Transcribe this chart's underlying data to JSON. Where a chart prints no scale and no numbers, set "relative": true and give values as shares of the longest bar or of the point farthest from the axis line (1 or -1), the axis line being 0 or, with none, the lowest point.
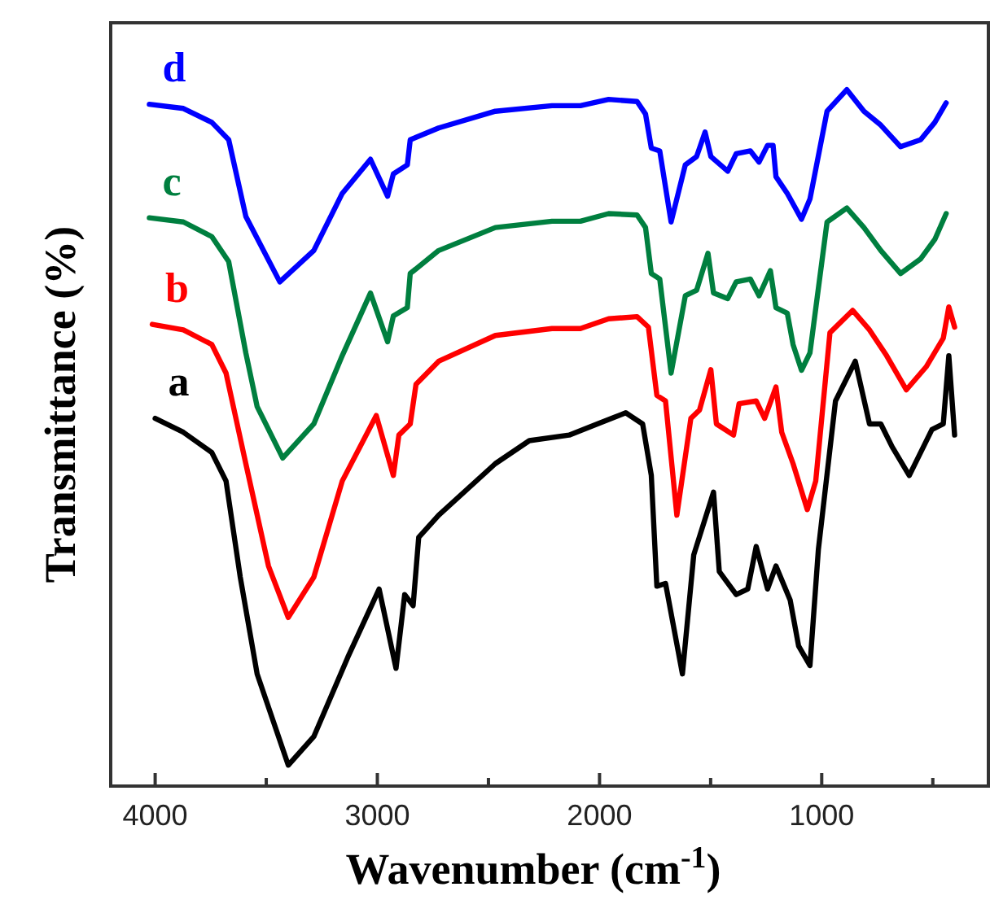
{
  "chart_data": {
    "type": "line",
    "relative": true,
    "xlabel": "Wavenumber (cm$^{-1}$)",
    "ylabel": "Transmittance (%)",
    "xlim": [
      4200,
      250
    ],
    "xticks": [
      4000,
      {
        "value": 3500,
        "label": null
      },
      3000,
      {
        "value": 2500,
        "label": null
      },
      2000,
      {
        "value": 1500,
        "label": null
      },
      1000,
      {
        "value": 500,
        "label": null
      }
    ],
    "grid": false,
    "marker": "none",
    "line_style": "solid",
    "series": [
      {
        "name": "a",
        "color": "#000000",
        "x": [
          4000,
          3873,
          3745,
          3681,
          3617,
          3541,
          3401,
          3286,
          3133,
          2992,
          2916,
          2877,
          2839,
          2814,
          2724,
          2469,
          2316,
          2137,
          2010,
          1882,
          1806,
          1767,
          1742,
          1703,
          1627,
          1576,
          1487,
          1461,
          1385,
          1333,
          1295,
          1244,
          1206,
          1142,
          1104,
          1053,
          1015,
          938,
          849,
          785,
          734,
          683,
          606,
          504,
          453,
          428,
          402
        ],
        "values": [
          0.528,
          0.508,
          0.479,
          0.438,
          0.3,
          0.161,
          0.03,
          0.071,
          0.185,
          0.283,
          0.169,
          0.275,
          0.259,
          0.357,
          0.389,
          0.463,
          0.496,
          0.504,
          0.52,
          0.536,
          0.52,
          0.446,
          0.287,
          0.291,
          0.161,
          0.332,
          0.422,
          0.308,
          0.275,
          0.283,
          0.344,
          0.283,
          0.316,
          0.267,
          0.201,
          0.173,
          0.34,
          0.553,
          0.61,
          0.52,
          0.52,
          0.487,
          0.446,
          0.512,
          0.52,
          0.618,
          0.504
        ]
      },
      {
        "name": "b",
        "color": "#ff0000",
        "x": [
          4013,
          3873,
          3745,
          3681,
          3592,
          3490,
          3401,
          3286,
          3158,
          3005,
          2928,
          2903,
          2852,
          2826,
          2724,
          2469,
          2214,
          2086,
          1959,
          1831,
          1780,
          1742,
          1703,
          1652,
          1589,
          1550,
          1499,
          1474,
          1397,
          1372,
          1295,
          1257,
          1206,
          1180,
          1129,
          1065,
          1027,
          963,
          861,
          785,
          708,
          619,
          530,
          453,
          428,
          402
        ],
        "values": [
          0.663,
          0.655,
          0.634,
          0.593,
          0.463,
          0.316,
          0.242,
          0.3,
          0.438,
          0.532,
          0.446,
          0.504,
          0.52,
          0.577,
          0.61,
          0.647,
          0.657,
          0.657,
          0.671,
          0.674,
          0.659,
          0.561,
          0.553,
          0.389,
          0.528,
          0.54,
          0.598,
          0.52,
          0.504,
          0.549,
          0.553,
          0.528,
          0.573,
          0.508,
          0.463,
          0.397,
          0.438,
          0.651,
          0.683,
          0.655,
          0.618,
          0.569,
          0.602,
          0.643,
          0.688,
          0.659
        ]
      },
      {
        "name": "c",
        "color": "#007f3f",
        "x": [
          4026,
          3873,
          3745,
          3669,
          3592,
          3541,
          3426,
          3286,
          3158,
          3031,
          2954,
          2928,
          2865,
          2852,
          2724,
          2469,
          2214,
          2086,
          1959,
          1831,
          1793,
          1767,
          1729,
          1678,
          1614,
          1563,
          1512,
          1487,
          1423,
          1385,
          1321,
          1282,
          1231,
          1206,
          1155,
          1129,
          1091,
          1053,
          976,
          887,
          810,
          734,
          645,
          555,
          491,
          440
        ],
        "values": [
          0.816,
          0.81,
          0.789,
          0.753,
          0.622,
          0.545,
          0.471,
          0.52,
          0.618,
          0.708,
          0.638,
          0.675,
          0.687,
          0.736,
          0.769,
          0.802,
          0.811,
          0.811,
          0.822,
          0.82,
          0.802,
          0.736,
          0.728,
          0.593,
          0.704,
          0.712,
          0.765,
          0.708,
          0.7,
          0.724,
          0.728,
          0.704,
          0.74,
          0.687,
          0.679,
          0.634,
          0.597,
          0.622,
          0.81,
          0.83,
          0.802,
          0.769,
          0.736,
          0.757,
          0.785,
          0.822
        ]
      },
      {
        "name": "d",
        "color": "#0000ff",
        "x": [
          4026,
          3873,
          3745,
          3669,
          3592,
          3439,
          3286,
          3158,
          3031,
          2954,
          2928,
          2865,
          2852,
          2724,
          2469,
          2214,
          2086,
          1959,
          1831,
          1793,
          1767,
          1729,
          1678,
          1614,
          1563,
          1525,
          1499,
          1423,
          1385,
          1321,
          1282,
          1244,
          1219,
          1206,
          1155,
          1091,
          1053,
          976,
          887,
          810,
          734,
          645,
          555,
          491,
          440
        ],
        "values": [
          0.979,
          0.973,
          0.953,
          0.928,
          0.818,
          0.724,
          0.769,
          0.851,
          0.9,
          0.847,
          0.879,
          0.892,
          0.928,
          0.945,
          0.969,
          0.977,
          0.977,
          0.986,
          0.983,
          0.965,
          0.916,
          0.912,
          0.81,
          0.892,
          0.904,
          0.939,
          0.904,
          0.883,
          0.908,
          0.912,
          0.896,
          0.92,
          0.92,
          0.875,
          0.851,
          0.814,
          0.843,
          0.969,
          1.0,
          0.969,
          0.949,
          0.918,
          0.928,
          0.953,
          0.981
        ]
      }
    ]
  }
}
